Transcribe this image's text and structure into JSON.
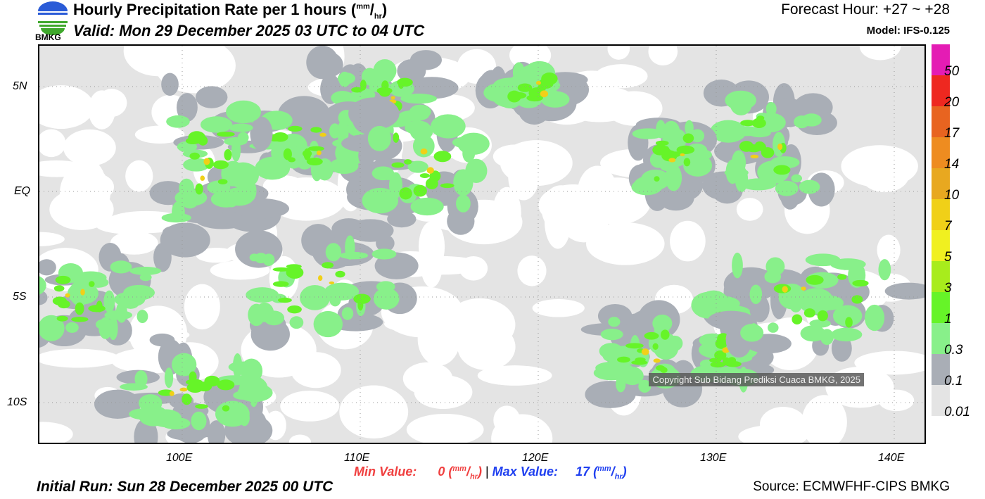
{
  "header": {
    "title": "Hourly Precipitation Rate per 1 hours (",
    "unit_num": "mm",
    "unit_den": "hr",
    "title_close": ")",
    "valid": "Valid: Mon 29 December 2025 03 UTC to 04 UTC",
    "forecast_hour": "Forecast Hour: +27 ~ +28",
    "model": "Model: IFS-0.125",
    "logo_text": "BMKG"
  },
  "axes": {
    "lon_ticks": [
      "100E",
      "110E",
      "120E",
      "130E",
      "140E"
    ],
    "lat_ticks": [
      "5N",
      "EQ",
      "5S",
      "10S"
    ]
  },
  "legend": {
    "colors": [
      "#e4e4e4",
      "#a9aeb6",
      "#88f08a",
      "#66f428",
      "#a8ec1c",
      "#f0f020",
      "#f0d018",
      "#e8a820",
      "#ee8c20",
      "#e86420",
      "#ee2820",
      "#e41cb4"
    ],
    "labels": [
      "0.01",
      "0.1",
      "0.3",
      "1",
      "3",
      "5",
      "7",
      "10",
      "14",
      "17",
      "20",
      "50"
    ]
  },
  "stats": {
    "min_label": "Min Value:",
    "min_value": "0 (",
    "max_label": "Max Value:",
    "max_value": "17 (",
    "unit_num": "mm",
    "unit_den": "hr",
    "close": ")",
    "separator": "|",
    "min_color": "#f04040",
    "max_color": "#2040f0"
  },
  "footer": {
    "initial_run": "Initial Run: Sun 28 December 2025 00 UTC",
    "source": "Source: ECMWFHF-CIPS BMKG",
    "copyright": "Copyright Sub Bidang Prediksi Cuaca BMKG, 2025"
  }
}
